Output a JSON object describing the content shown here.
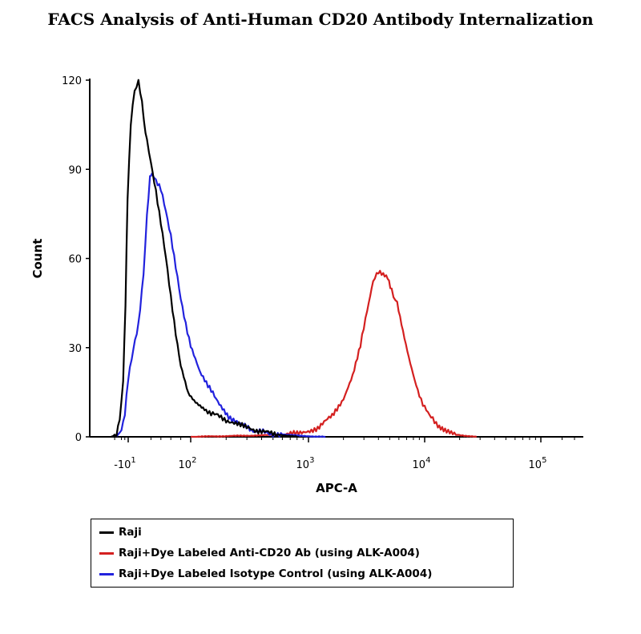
{
  "title": "FACS Analysis of Anti-Human CD20 Antibody Internalization",
  "chart_data": {
    "type": "line",
    "xlabel": "APC-A",
    "ylabel": "Count",
    "ylim": [
      0,
      120
    ],
    "y_ticks": [
      "0",
      "30",
      "60",
      "90",
      "120"
    ],
    "x_ticks": [
      {
        "base": "-10",
        "exp": "1",
        "value": -10
      },
      {
        "base": "10",
        "exp": "2",
        "value": 100
      },
      {
        "base": "10",
        "exp": "3",
        "value": 1000
      },
      {
        "base": "10",
        "exp": "4",
        "value": 10000
      },
      {
        "base": "10",
        "exp": "5",
        "value": 100000
      }
    ],
    "x_scale": "biexponential",
    "series": [
      {
        "name": "Raji",
        "color": "#000000",
        "points": [
          [
            -60,
            0
          ],
          [
            -45,
            1
          ],
          [
            -35,
            6
          ],
          [
            -25,
            18
          ],
          [
            -18,
            45
          ],
          [
            -12,
            80
          ],
          [
            -8,
            105
          ],
          [
            -5,
            117
          ],
          [
            -2,
            119
          ],
          [
            2,
            113
          ],
          [
            6,
            106
          ],
          [
            12,
            100
          ],
          [
            20,
            92
          ],
          [
            30,
            83
          ],
          [
            40,
            72
          ],
          [
            50,
            60
          ],
          [
            60,
            47
          ],
          [
            70,
            35
          ],
          [
            80,
            24
          ],
          [
            95,
            15
          ],
          [
            110,
            12
          ],
          [
            135,
            9
          ],
          [
            170,
            7
          ],
          [
            220,
            5
          ],
          [
            300,
            3
          ],
          [
            500,
            1
          ],
          [
            800,
            0
          ]
        ]
      },
      {
        "name": "Raji+Dye Labeled Anti-CD20 Ab (using ALK-A004)",
        "color": "#d42020",
        "points": [
          [
            100,
            0
          ],
          [
            400,
            0.5
          ],
          [
            800,
            1
          ],
          [
            1200,
            3
          ],
          [
            1600,
            7
          ],
          [
            2000,
            13
          ],
          [
            2400,
            21
          ],
          [
            2800,
            31
          ],
          [
            3200,
            42
          ],
          [
            3600,
            52
          ],
          [
            4000,
            56
          ],
          [
            4400,
            55
          ],
          [
            4800,
            54
          ],
          [
            5200,
            49
          ],
          [
            5800,
            45
          ],
          [
            6500,
            36
          ],
          [
            7300,
            27
          ],
          [
            8200,
            19
          ],
          [
            9000,
            14
          ],
          [
            10000,
            10
          ],
          [
            11000,
            7
          ],
          [
            13000,
            4
          ],
          [
            15000,
            2
          ],
          [
            18000,
            1
          ],
          [
            22000,
            0.3
          ],
          [
            28000,
            0
          ]
        ]
      },
      {
        "name": "Raji+Dye Labeled Isotype Control (using ALK-A004)",
        "color": "#2222dd",
        "points": [
          [
            -45,
            0
          ],
          [
            -30,
            2
          ],
          [
            -20,
            8
          ],
          [
            -10,
            20
          ],
          [
            -2,
            38
          ],
          [
            5,
            55
          ],
          [
            12,
            74
          ],
          [
            18,
            87
          ],
          [
            22,
            89
          ],
          [
            30,
            86
          ],
          [
            40,
            83
          ],
          [
            50,
            76
          ],
          [
            60,
            68
          ],
          [
            70,
            57
          ],
          [
            80,
            46
          ],
          [
            90,
            38
          ],
          [
            100,
            31
          ],
          [
            120,
            22
          ],
          [
            140,
            17
          ],
          [
            170,
            12
          ],
          [
            210,
            7
          ],
          [
            270,
            4
          ],
          [
            350,
            2
          ],
          [
            500,
            1
          ],
          [
            900,
            0.3
          ],
          [
            1400,
            0
          ]
        ]
      }
    ],
    "legend_position": "bottom",
    "grid": false
  },
  "legend": [
    {
      "label": "Raji",
      "color": "#000000"
    },
    {
      "label": "Raji+Dye Labeled Anti-CD20 Ab (using ALK-A004)",
      "color": "#d42020"
    },
    {
      "label": "Raji+Dye Labeled Isotype Control (using ALK-A004)",
      "color": "#2222dd"
    }
  ]
}
